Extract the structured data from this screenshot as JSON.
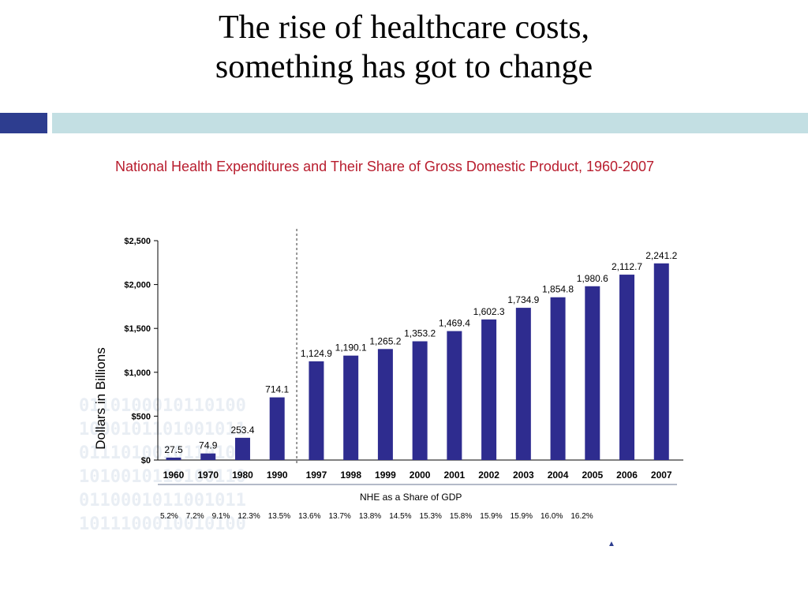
{
  "slide": {
    "title_line1": "The rise of healthcare costs,",
    "title_line2": "something has got to change"
  },
  "colors": {
    "bar": "#2e2c8f",
    "chart_title": "#b81d2e",
    "accent_dark": "#2d3d8f",
    "accent_light": "#c3dfe3"
  },
  "chart_data": {
    "type": "bar",
    "title": "National Health Expenditures and Their Share of Gross Domestic Product, 1960-2007",
    "ylabel": "Dollars in Billions",
    "xlabel": "",
    "ylim": [
      0,
      2500
    ],
    "yticks": [
      "$0",
      "$500",
      "$1,000",
      "$1,500",
      "$2,000",
      "$2,500"
    ],
    "ytick_values": [
      0,
      500,
      1000,
      1500,
      2000,
      2500
    ],
    "categories": [
      "1960",
      "1970",
      "1980",
      "1990",
      "1997",
      "1998",
      "1999",
      "2000",
      "2001",
      "2002",
      "2003",
      "2004",
      "2005",
      "2006",
      "2007"
    ],
    "values": [
      27.5,
      74.9,
      253.4,
      714.1,
      1124.9,
      1190.1,
      1265.2,
      1353.2,
      1469.4,
      1602.3,
      1734.9,
      1854.8,
      1980.6,
      2112.7,
      2241.2
    ],
    "value_labels": [
      "27.5",
      "74.9",
      "253.4",
      "714.1",
      "1,124.9",
      "1,190.1",
      "1,265.2",
      "1,353.2",
      "1,469.4",
      "1,602.3",
      "1,734.9",
      "1,854.8",
      "1,980.6",
      "2,112.7",
      "2,241.2"
    ],
    "divider_after_category": "1990",
    "grid": false,
    "gdp_share_header": "NHE as a Share of GDP",
    "gdp_share": [
      "5.2%",
      "7.2%",
      "9.1%",
      "12.3%",
      "13.5%",
      "13.6%",
      "13.7%",
      "13.8%",
      "14.5%",
      "15.3%",
      "15.8%",
      "15.9%",
      "15.9%",
      "16.0%",
      "16.2%"
    ]
  }
}
